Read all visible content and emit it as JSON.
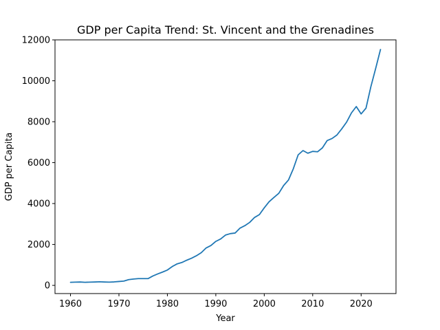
{
  "chart_data": {
    "type": "line",
    "title": "GDP per Capita Trend: St. Vincent and the Grenadines",
    "xlabel": "Year",
    "ylabel": "GDP per Capita",
    "xlim": [
      1956.8,
      2027.2
    ],
    "ylim": [
      -400,
      12000
    ],
    "xticks": [
      1960,
      1970,
      1980,
      1990,
      2000,
      2010,
      2020
    ],
    "yticks": [
      0,
      2000,
      4000,
      6000,
      8000,
      10000,
      12000
    ],
    "grid": false,
    "series_color": "#1f77b4",
    "series": [
      {
        "x": [
          1960,
          1961,
          1962,
          1963,
          1964,
          1965,
          1966,
          1967,
          1968,
          1969,
          1970,
          1971,
          1972,
          1973,
          1974,
          1975,
          1976,
          1977,
          1978,
          1979,
          1980,
          1981,
          1982,
          1983,
          1984,
          1985,
          1986,
          1987,
          1988,
          1989,
          1990,
          1991,
          1992,
          1993,
          1994,
          1995,
          1996,
          1997,
          1998,
          1999,
          2000,
          2001,
          2002,
          2003,
          2004,
          2005,
          2006,
          2007,
          2008,
          2009,
          2010,
          2011,
          2012,
          2013,
          2014,
          2015,
          2016,
          2017,
          2018,
          2019,
          2020,
          2021,
          2022,
          2023,
          2024
        ],
        "values": [
          150,
          160,
          165,
          150,
          160,
          165,
          175,
          165,
          160,
          170,
          190,
          210,
          280,
          310,
          330,
          330,
          330,
          460,
          560,
          650,
          750,
          920,
          1050,
          1120,
          1230,
          1330,
          1450,
          1600,
          1830,
          1950,
          2150,
          2270,
          2460,
          2530,
          2560,
          2800,
          2920,
          3080,
          3320,
          3460,
          3790,
          4090,
          4300,
          4500,
          4880,
          5150,
          5700,
          6380,
          6590,
          6460,
          6550,
          6530,
          6720,
          7080,
          7180,
          7350,
          7650,
          7980,
          8430,
          8740,
          8380,
          8660,
          9700,
          10600,
          11530
        ]
      }
    ]
  }
}
